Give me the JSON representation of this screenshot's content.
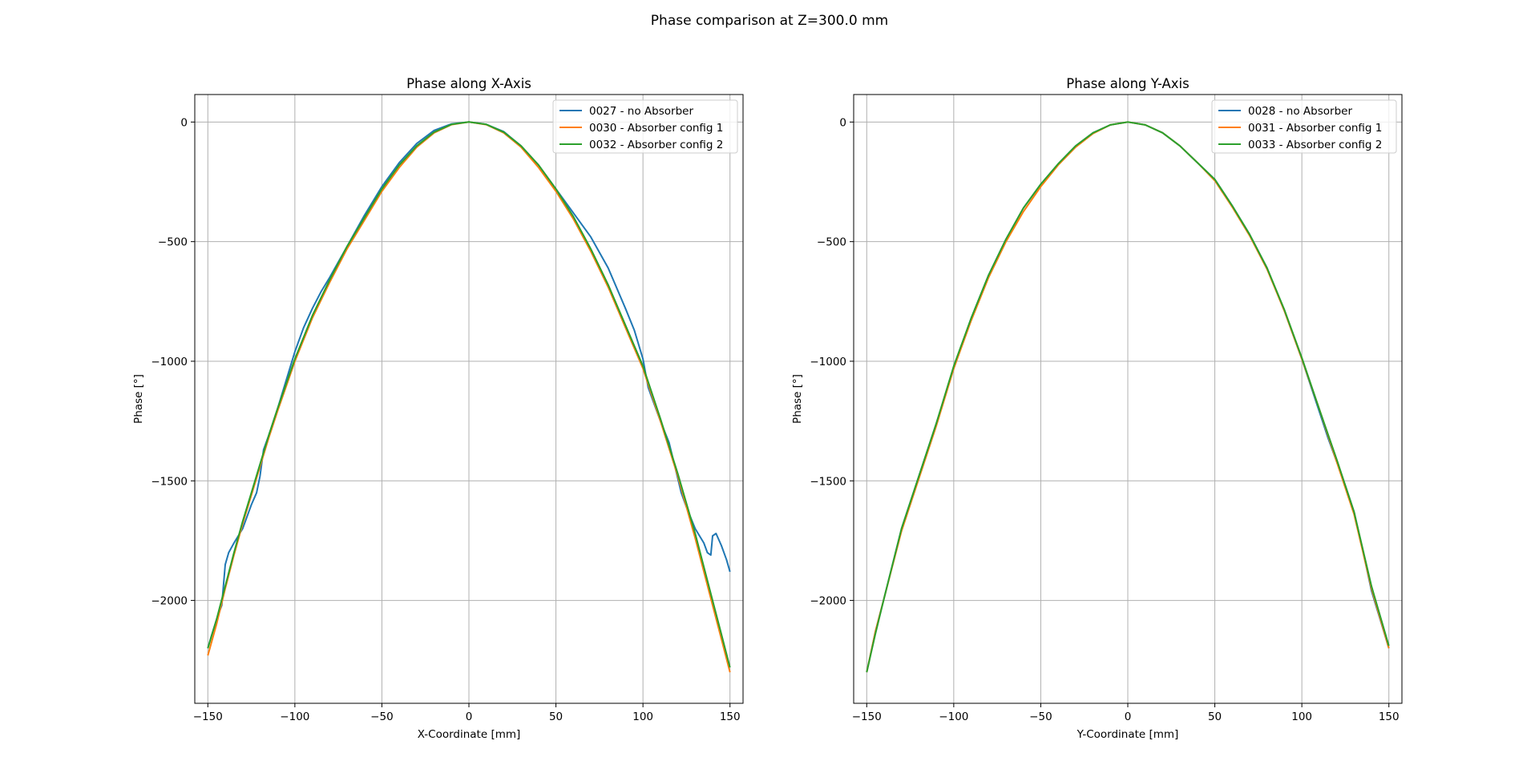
{
  "figure": {
    "suptitle": "Phase comparison at Z=300.0 mm"
  },
  "colors": {
    "series": [
      "#1f77b4",
      "#ff7f0e",
      "#2ca02c"
    ],
    "grid": "#b0b0b0"
  },
  "chart_data": [
    {
      "type": "line",
      "title": "Phase along X-Axis",
      "xlabel": "X-Coordinate [mm]",
      "ylabel": "Phase [°]",
      "xlim": [
        -157.5,
        157.5
      ],
      "ylim": [
        -2430,
        115
      ],
      "xticks": [
        -150,
        -100,
        -50,
        0,
        50,
        100,
        150
      ],
      "xtick_labels": [
        "−150",
        "−100",
        "−50",
        "0",
        "50",
        "100",
        "150"
      ],
      "yticks": [
        0,
        -500,
        -1000,
        -1500,
        -2000
      ],
      "ytick_labels": [
        "0",
        "−500",
        "−1000",
        "−1500",
        "−2000"
      ],
      "grid": true,
      "legend_position": "top-right",
      "series": [
        {
          "name": "0027 - no Absorber",
          "x": [
            -150,
            -148,
            -145,
            -142,
            -140,
            -138,
            -135,
            -130,
            -125,
            -122,
            -120,
            -118,
            -115,
            -110,
            -105,
            -100,
            -95,
            -90,
            -85,
            -80,
            -70,
            -60,
            -50,
            -40,
            -30,
            -20,
            -10,
            0,
            10,
            20,
            30,
            40,
            50,
            60,
            70,
            80,
            90,
            95,
            100,
            103,
            105,
            110,
            115,
            120,
            122,
            125,
            130,
            135,
            137,
            139,
            140,
            142,
            145,
            148,
            150
          ],
          "y": [
            -2200,
            -2150,
            -2080,
            -2020,
            -1850,
            -1800,
            -1760,
            -1700,
            -1600,
            -1550,
            -1480,
            -1370,
            -1310,
            -1200,
            -1080,
            -960,
            -860,
            -780,
            -710,
            -650,
            -520,
            -390,
            -270,
            -170,
            -90,
            -35,
            -8,
            0,
            -10,
            -40,
            -100,
            -180,
            -280,
            -380,
            -480,
            -610,
            -780,
            -870,
            -990,
            -1110,
            -1150,
            -1250,
            -1340,
            -1490,
            -1550,
            -1610,
            -1700,
            -1760,
            -1800,
            -1810,
            -1730,
            -1720,
            -1770,
            -1830,
            -1880
          ]
        },
        {
          "name": "0030 - Absorber config 1",
          "x": [
            -150,
            -145,
            -140,
            -135,
            -130,
            -125,
            -120,
            -115,
            -110,
            -100,
            -90,
            -80,
            -70,
            -60,
            -50,
            -40,
            -30,
            -20,
            -10,
            0,
            10,
            20,
            30,
            40,
            50,
            60,
            70,
            80,
            90,
            100,
            110,
            120,
            130,
            140,
            145,
            150
          ],
          "y": [
            -2230,
            -2100,
            -1950,
            -1810,
            -1680,
            -1560,
            -1440,
            -1320,
            -1210,
            -1000,
            -820,
            -670,
            -530,
            -410,
            -290,
            -190,
            -105,
            -45,
            -11,
            0,
            -11,
            -45,
            -105,
            -190,
            -290,
            -405,
            -540,
            -690,
            -860,
            -1030,
            -1250,
            -1480,
            -1740,
            -2020,
            -2160,
            -2300
          ]
        },
        {
          "name": "0032 - Absorber config 2",
          "x": [
            -150,
            -145,
            -140,
            -135,
            -130,
            -125,
            -120,
            -115,
            -110,
            -100,
            -90,
            -80,
            -70,
            -60,
            -50,
            -40,
            -30,
            -20,
            -10,
            0,
            10,
            20,
            30,
            40,
            50,
            60,
            70,
            80,
            90,
            100,
            110,
            120,
            130,
            140,
            145,
            150
          ],
          "y": [
            -2200,
            -2080,
            -1940,
            -1800,
            -1670,
            -1550,
            -1430,
            -1310,
            -1200,
            -990,
            -810,
            -660,
            -520,
            -400,
            -280,
            -180,
            -100,
            -42,
            -10,
            0,
            -10,
            -42,
            -100,
            -180,
            -280,
            -395,
            -530,
            -680,
            -850,
            -1020,
            -1240,
            -1470,
            -1720,
            -2000,
            -2140,
            -2280
          ]
        }
      ]
    },
    {
      "type": "line",
      "title": "Phase along Y-Axis",
      "xlabel": "Y-Coordinate [mm]",
      "ylabel": "Phase [°]",
      "xlim": [
        -157.5,
        157.5
      ],
      "ylim": [
        -2430,
        115
      ],
      "xticks": [
        -150,
        -100,
        -50,
        0,
        50,
        100,
        150
      ],
      "xtick_labels": [
        "−150",
        "−100",
        "−50",
        "0",
        "50",
        "100",
        "150"
      ],
      "yticks": [
        0,
        -500,
        -1000,
        -1500,
        -2000
      ],
      "ytick_labels": [
        "0",
        "−500",
        "−1000",
        "−1500",
        "−2000"
      ],
      "grid": true,
      "legend_position": "top-right",
      "series": [
        {
          "name": "0028 - no Absorber",
          "x": [
            -150,
            -145,
            -140,
            -130,
            -120,
            -110,
            -100,
            -90,
            -80,
            -70,
            -60,
            -50,
            -40,
            -30,
            -20,
            -10,
            0,
            10,
            20,
            30,
            40,
            50,
            60,
            70,
            80,
            90,
            100,
            110,
            115,
            120,
            125,
            130,
            135,
            140,
            145,
            150
          ],
          "y": [
            -2300,
            -2130,
            -1990,
            -1700,
            -1480,
            -1260,
            -1030,
            -820,
            -640,
            -490,
            -360,
            -260,
            -175,
            -100,
            -45,
            -12,
            0,
            -12,
            -45,
            -100,
            -170,
            -240,
            -350,
            -470,
            -610,
            -790,
            -990,
            -1210,
            -1320,
            -1420,
            -1520,
            -1630,
            -1790,
            -1960,
            -2080,
            -2200
          ]
        },
        {
          "name": "0031 - Absorber config 1",
          "x": [
            -150,
            -145,
            -140,
            -130,
            -120,
            -110,
            -100,
            -90,
            -80,
            -70,
            -60,
            -50,
            -40,
            -30,
            -20,
            -10,
            0,
            10,
            20,
            30,
            40,
            50,
            60,
            70,
            80,
            90,
            100,
            110,
            120,
            130,
            140,
            150
          ],
          "y": [
            -2300,
            -2130,
            -1990,
            -1710,
            -1490,
            -1270,
            -1030,
            -830,
            -650,
            -500,
            -375,
            -270,
            -180,
            -105,
            -48,
            -12,
            0,
            -12,
            -45,
            -100,
            -170,
            -245,
            -355,
            -475,
            -615,
            -790,
            -990,
            -1200,
            -1420,
            -1640,
            -1950,
            -2200
          ]
        },
        {
          "name": "0033 - Absorber config 2",
          "x": [
            -150,
            -145,
            -140,
            -130,
            -120,
            -110,
            -100,
            -90,
            -80,
            -70,
            -60,
            -50,
            -40,
            -30,
            -20,
            -10,
            0,
            10,
            20,
            30,
            40,
            50,
            60,
            70,
            80,
            90,
            100,
            110,
            120,
            130,
            140,
            150
          ],
          "y": [
            -2300,
            -2140,
            -1990,
            -1700,
            -1480,
            -1260,
            -1020,
            -820,
            -640,
            -490,
            -360,
            -260,
            -175,
            -100,
            -45,
            -12,
            0,
            -12,
            -45,
            -100,
            -170,
            -240,
            -350,
            -470,
            -610,
            -785,
            -985,
            -1200,
            -1410,
            -1630,
            -1940,
            -2190
          ]
        }
      ]
    }
  ]
}
